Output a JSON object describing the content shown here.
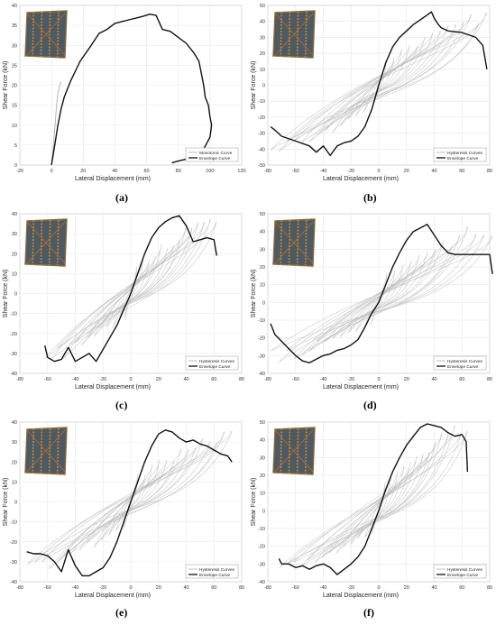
{
  "figure": {
    "panels": [
      {
        "caption": "(a)",
        "xlabel": "Lateral Displacement (mm)",
        "ylabel": "Shear Force (kN)",
        "xlim": [
          -20,
          120
        ],
        "ylim": [
          0,
          40
        ],
        "xticks": [
          -20,
          0,
          20,
          40,
          60,
          80,
          100,
          120
        ],
        "yticks": [
          0,
          5,
          10,
          15,
          20,
          25,
          30,
          35,
          40
        ],
        "legend": [
          "Monotonic Curve",
          "Envelope Curve"
        ]
      },
      {
        "caption": "(b)",
        "xlabel": "Lateral Displacement (mm)",
        "ylabel": "Shear Force (kN)",
        "xlim": [
          -80,
          80
        ],
        "ylim": [
          -50,
          50
        ],
        "xticks": [
          -80,
          -60,
          -40,
          -20,
          0,
          20,
          40,
          60,
          80
        ],
        "yticks": [
          -50,
          -40,
          -30,
          -20,
          -10,
          0,
          10,
          20,
          30,
          40,
          50
        ],
        "legend": [
          "Hysteresis Curves",
          "Envelope Curve"
        ]
      },
      {
        "caption": "(c)",
        "xlabel": "Lateral Displacement (mm)",
        "ylabel": "Shear Force (kN)",
        "xlim": [
          -80,
          80
        ],
        "ylim": [
          -40,
          40
        ],
        "xticks": [
          -80,
          -60,
          -40,
          -20,
          0,
          20,
          40,
          60,
          80
        ],
        "yticks": [
          -40,
          -30,
          -20,
          -10,
          0,
          10,
          20,
          30,
          40
        ],
        "legend": [
          "Hysteresis Curves",
          "Envelope Curve"
        ]
      },
      {
        "caption": "(d)",
        "xlabel": "Lateral Displacement (mm)",
        "ylabel": "Shear Force (kN)",
        "xlim": [
          -80,
          80
        ],
        "ylim": [
          -40,
          50
        ],
        "xticks": [
          -80,
          -60,
          -40,
          -20,
          0,
          20,
          40,
          60,
          80
        ],
        "yticks": [
          -40,
          -30,
          -20,
          -10,
          0,
          10,
          20,
          30,
          40,
          50
        ],
        "legend": [
          "Hysteresis Curves",
          "Envelope Curve"
        ]
      },
      {
        "caption": "(e)",
        "xlabel": "Lateral Displacement (mm)",
        "ylabel": "Shear Force (kN)",
        "xlim": [
          -80,
          80
        ],
        "ylim": [
          -40,
          40
        ],
        "xticks": [
          -80,
          -60,
          -40,
          -20,
          0,
          20,
          40,
          60,
          80
        ],
        "yticks": [
          -40,
          -30,
          -20,
          -10,
          0,
          10,
          20,
          30,
          40
        ],
        "legend": [
          "Hysteresis Curves",
          "Envelope Curve"
        ]
      },
      {
        "caption": "(f)",
        "xlabel": "Lateral Displacement (mm)",
        "ylabel": "Shear Force (kN)",
        "xlim": [
          -80,
          80
        ],
        "ylim": [
          -40,
          50
        ],
        "xticks": [
          -80,
          -60,
          -40,
          -20,
          0,
          20,
          40,
          60,
          80
        ],
        "yticks": [
          -40,
          -30,
          -20,
          -10,
          0,
          10,
          20,
          30,
          40,
          50
        ],
        "legend": [
          "Hysteresis Curves",
          "Envelope Curve"
        ]
      }
    ]
  },
  "chart_data": [
    {
      "type": "line",
      "title": "",
      "xlabel": "Lateral Displacement (mm)",
      "ylabel": "Shear Force (kN)",
      "xlim": [
        -20,
        120
      ],
      "ylim": [
        0,
        40
      ],
      "grid": true,
      "legend_position": "bottom-right",
      "series": [
        {
          "name": "Monotonic Curve",
          "color": "#b5b5b5",
          "x": [
            0,
            1,
            2,
            3,
            4,
            6
          ],
          "y": [
            0,
            4,
            9,
            14,
            18,
            21
          ]
        },
        {
          "name": "Envelope Curve",
          "color": "#111111",
          "x": [
            0,
            2,
            4,
            6,
            8,
            12,
            18,
            25,
            30,
            35,
            40,
            45,
            50,
            55,
            58,
            62,
            66,
            70,
            75,
            80,
            85,
            90,
            93,
            95,
            96,
            97,
            99,
            100,
            101,
            100,
            96,
            92,
            85,
            80,
            77,
            76
          ],
          "y": [
            0,
            5,
            10,
            14,
            17,
            21,
            26,
            30,
            33,
            34,
            35.5,
            36,
            36.5,
            37,
            37.3,
            37.8,
            37.5,
            34,
            33.5,
            32,
            30.5,
            28,
            26,
            22,
            20,
            17,
            15,
            12,
            10,
            7,
            4,
            2.5,
            1.5,
            1,
            0.7,
            0.5
          ]
        }
      ]
    },
    {
      "type": "line",
      "title": "",
      "xlabel": "Lateral Displacement (mm)",
      "ylabel": "Shear Force (kN)",
      "xlim": [
        -80,
        80
      ],
      "ylim": [
        -50,
        50
      ],
      "grid": true,
      "legend_position": "bottom-right",
      "series": [
        {
          "name": "Hysteresis Curves",
          "color": "#b8b8b8"
        },
        {
          "name": "Envelope Curve",
          "color": "#111111",
          "x": [
            -78,
            -75,
            -70,
            -60,
            -50,
            -45,
            -40,
            -35,
            -30,
            -25,
            -20,
            -15,
            -10,
            -5,
            0,
            5,
            10,
            15,
            20,
            25,
            30,
            35,
            38,
            40,
            43,
            45,
            50,
            60,
            70,
            75,
            78
          ],
          "y": [
            -26,
            -28,
            -32,
            -35,
            -38,
            -42,
            -38,
            -44,
            -38,
            -36,
            -35,
            -32,
            -26,
            -15,
            0,
            14,
            24,
            30,
            34,
            38,
            41,
            44,
            46,
            42,
            38,
            36,
            34,
            33,
            30,
            25,
            10
          ]
        }
      ]
    },
    {
      "type": "line",
      "title": "",
      "xlabel": "Lateral Displacement (mm)",
      "ylabel": "Shear Force (kN)",
      "xlim": [
        -80,
        80
      ],
      "ylim": [
        -40,
        40
      ],
      "grid": true,
      "legend_position": "bottom-right",
      "series": [
        {
          "name": "Hysteresis Curves",
          "color": "#b8b8b8"
        },
        {
          "name": "Envelope Curve",
          "color": "#111111",
          "x": [
            -62,
            -60,
            -55,
            -50,
            -45,
            -40,
            -35,
            -30,
            -25,
            -20,
            -15,
            -10,
            -5,
            0,
            5,
            10,
            15,
            20,
            25,
            30,
            35,
            40,
            45,
            50,
            55,
            60,
            62
          ],
          "y": [
            -26,
            -32,
            -34,
            -33,
            -27,
            -34,
            -32,
            -30,
            -34,
            -28,
            -22,
            -16,
            -8,
            0,
            10,
            20,
            28,
            33,
            36,
            38,
            39,
            34,
            26,
            27,
            28,
            27,
            19
          ]
        }
      ]
    },
    {
      "type": "line",
      "title": "",
      "xlabel": "Lateral Displacement (mm)",
      "ylabel": "Shear Force (kN)",
      "xlim": [
        -80,
        80
      ],
      "ylim": [
        -40,
        50
      ],
      "grid": true,
      "legend_position": "bottom-right",
      "series": [
        {
          "name": "Hysteresis Curves",
          "color": "#b8b8b8"
        },
        {
          "name": "Envelope Curve",
          "color": "#111111",
          "x": [
            -78,
            -75,
            -70,
            -65,
            -60,
            -55,
            -50,
            -45,
            -40,
            -35,
            -30,
            -25,
            -20,
            -15,
            -10,
            -5,
            0,
            5,
            10,
            15,
            20,
            25,
            30,
            35,
            40,
            45,
            50,
            55,
            60,
            65,
            70,
            75,
            80,
            82
          ],
          "y": [
            -12,
            -18,
            -22,
            -26,
            -30,
            -33,
            -34,
            -32,
            -30,
            -29,
            -27,
            -26,
            -24,
            -21,
            -14,
            -6,
            0,
            10,
            20,
            28,
            35,
            40,
            42,
            44,
            38,
            32,
            28,
            27,
            27,
            27,
            27,
            27,
            27,
            16
          ]
        }
      ]
    },
    {
      "type": "line",
      "title": "",
      "xlabel": "Lateral Displacement (mm)",
      "ylabel": "Shear Force (kN)",
      "xlim": [
        -80,
        80
      ],
      "ylim": [
        -40,
        40
      ],
      "grid": true,
      "legend_position": "bottom-right",
      "series": [
        {
          "name": "Hysteresis Curves",
          "color": "#b8b8b8"
        },
        {
          "name": "Envelope Curve",
          "color": "#111111",
          "x": [
            -75,
            -70,
            -65,
            -60,
            -55,
            -50,
            -45,
            -40,
            -35,
            -30,
            -25,
            -20,
            -15,
            -10,
            -5,
            0,
            5,
            10,
            15,
            20,
            25,
            30,
            35,
            40,
            45,
            50,
            55,
            60,
            65,
            70,
            73
          ],
          "y": [
            -25,
            -26,
            -26,
            -27,
            -30,
            -35,
            -24,
            -32,
            -37,
            -37,
            -35,
            -33,
            -28,
            -20,
            -10,
            0,
            10,
            20,
            28,
            34,
            36,
            35,
            32,
            30,
            31,
            29,
            28,
            26,
            24,
            23,
            20
          ]
        }
      ]
    },
    {
      "type": "line",
      "title": "",
      "xlabel": "Lateral Displacement (mm)",
      "ylabel": "Shear Force (kN)",
      "xlim": [
        -80,
        80
      ],
      "ylim": [
        -40,
        50
      ],
      "grid": true,
      "legend_position": "bottom-right",
      "series": [
        {
          "name": "Hysteresis Curves",
          "color": "#b8b8b8"
        },
        {
          "name": "Envelope Curve",
          "color": "#111111",
          "x": [
            -72,
            -70,
            -65,
            -60,
            -55,
            -50,
            -45,
            -40,
            -35,
            -30,
            -25,
            -20,
            -15,
            -10,
            -5,
            0,
            5,
            10,
            15,
            20,
            25,
            30,
            35,
            40,
            45,
            50,
            55,
            60,
            63,
            64
          ],
          "y": [
            -27,
            -30,
            -30,
            -32,
            -31,
            -33,
            -31,
            -30,
            -32,
            -36,
            -33,
            -30,
            -26,
            -20,
            -10,
            0,
            12,
            22,
            30,
            37,
            42,
            47,
            49,
            48,
            47,
            44,
            42,
            43,
            39,
            22
          ]
        }
      ]
    }
  ]
}
